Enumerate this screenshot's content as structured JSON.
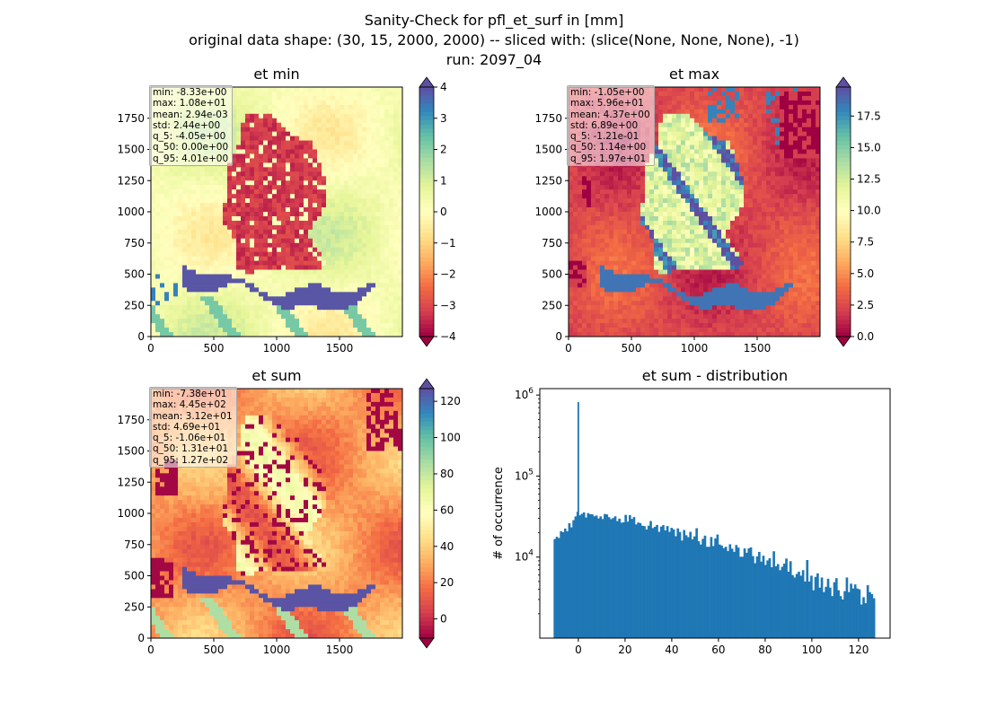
{
  "figure": {
    "title_lines": [
      "Sanity-Check for pfl_et_surf in [mm]",
      "original data shape: (30, 15, 2000, 2000) -- sliced with: (slice(None, None, None), -1)",
      "run: 2097_04"
    ]
  },
  "colors": {
    "spectral": [
      "#9e0142",
      "#d53e4f",
      "#f46d43",
      "#fdae61",
      "#fee08b",
      "#ffffbf",
      "#e6f598",
      "#abdda4",
      "#66c2a5",
      "#3288bd",
      "#5e4fa2"
    ],
    "hist_bar": "#1f77b4"
  },
  "chart_data": [
    {
      "type": "heatmap",
      "title": "et min",
      "xticks": [
        0,
        500,
        1000,
        1500
      ],
      "yticks": [
        0,
        250,
        500,
        750,
        1000,
        1250,
        1500,
        1750
      ],
      "xlim": [
        0,
        2000
      ],
      "ylim": [
        0,
        2000
      ],
      "colorbar": {
        "range": [
          -4,
          4
        ],
        "ticks": [
          4,
          3,
          2,
          1,
          0,
          -1,
          -2,
          -3,
          -4
        ],
        "tick_labels": [
          "4",
          "3",
          "2",
          "1",
          "0",
          "−1",
          "−2",
          "−3",
          "−4"
        ],
        "extend": "both",
        "colormap": "Spectral"
      },
      "stats": [
        "min: -8.33e+00",
        "max: 1.08e+01",
        "mean: 2.94e-03",
        "std: 2.44e+00",
        "q_5: -4.05e+00",
        "q_50: 0.00e+00",
        "q_95: 4.01e+00"
      ]
    },
    {
      "type": "heatmap",
      "title": "et max",
      "xticks": [
        0,
        500,
        1000,
        1500
      ],
      "yticks": [
        0,
        250,
        500,
        750,
        1000,
        1250,
        1500,
        1750
      ],
      "xlim": [
        0,
        2000
      ],
      "ylim": [
        0,
        2000
      ],
      "colorbar": {
        "range": [
          0,
          19.8
        ],
        "ticks": [
          17.5,
          15.0,
          12.5,
          10.0,
          7.5,
          5.0,
          2.5,
          0.0
        ],
        "tick_labels": [
          "17.5",
          "15.0",
          "12.5",
          "10.0",
          "7.5",
          "5.0",
          "2.5",
          "0.0"
        ],
        "extend": "both",
        "colormap": "Spectral"
      },
      "stats": [
        "min: -1.05e+00",
        "max: 5.96e+01",
        "mean: 4.37e+00",
        "std: 6.89e+00",
        "q_5: -1.21e-01",
        "q_50: 1.14e+00",
        "q_95: 1.97e+01"
      ]
    },
    {
      "type": "heatmap",
      "title": "et sum",
      "xticks": [
        0,
        500,
        1000,
        1500
      ],
      "yticks": [
        0,
        250,
        500,
        750,
        1000,
        1250,
        1500,
        1750
      ],
      "xlim": [
        0,
        2000
      ],
      "ylim": [
        0,
        2000
      ],
      "colorbar": {
        "range": [
          -10.6,
          127
        ],
        "ticks": [
          120,
          100,
          80,
          60,
          40,
          20,
          0
        ],
        "tick_labels": [
          "120",
          "100",
          "80",
          "60",
          "40",
          "20",
          "0"
        ],
        "extend": "both",
        "colormap": "Spectral"
      },
      "stats": [
        "min: -7.38e+01",
        "max: 4.45e+02",
        "mean: 3.12e+01",
        "std: 4.69e+01",
        "q_5: -1.06e+01",
        "q_50: 1.31e+01",
        "q_95: 1.27e+02"
      ]
    },
    {
      "type": "bar",
      "title": "et sum - distribution",
      "ylabel": "# of occurrence",
      "yscale": "log",
      "xlim": [
        -16.5,
        133.5
      ],
      "ylim": [
        1000,
        1200000
      ],
      "xticks": [
        0,
        20,
        40,
        60,
        80,
        100,
        120
      ],
      "yticks": [
        10000,
        100000,
        1000000
      ],
      "ytick_labels": [
        {
          "base": "10",
          "exp": "4"
        },
        {
          "base": "10",
          "exp": "5"
        },
        {
          "base": "10",
          "exp": "6"
        }
      ],
      "bin_range": [
        -10.6,
        127
      ],
      "peak": {
        "x": 0,
        "y": 820000
      },
      "bin_counts": [
        16700,
        17800,
        17200,
        20800,
        20300,
        22500,
        20800,
        26200,
        23300,
        28500,
        31800,
        36300,
        32800,
        34200,
        35600,
        30800,
        34900,
        33800,
        33700,
        31900,
        32600,
        30000,
        31800,
        29500,
        34000,
        33600,
        31100,
        29400,
        30400,
        31900,
        27800,
        29800,
        26600,
        26900,
        33200,
        27400,
        33000,
        29600,
        31200,
        25300,
        26700,
        26300,
        24400,
        24100,
        21900,
        24400,
        27900,
        22800,
        23600,
        24900,
        20500,
        23800,
        24800,
        21400,
        24200,
        20500,
        23000,
        22000,
        18100,
        22600,
        20400,
        16000,
        21600,
        18600,
        17600,
        20500,
        16600,
        18000,
        22700,
        15700,
        14300,
        16800,
        18400,
        13400,
        13400,
        17700,
        13700,
        17000,
        19000,
        14300,
        13900,
        12900,
        13400,
        11900,
        14400,
        12700,
        11600,
        14100,
        13100,
        10100,
        10100,
        12800,
        11300,
        12800,
        13200,
        10300,
        8400,
        10200,
        11600,
        8800,
        10400,
        8000,
        9100,
        9700,
        7500,
        11800,
        7700,
        8200,
        6900,
        7600,
        8300,
        9600,
        6600,
        8900,
        6000,
        5600,
        6200,
        6600,
        5900,
        6900,
        5000,
        9200,
        5000,
        5900,
        3900,
        5700,
        6300,
        4200,
        5600,
        3700,
        4300,
        5400,
        4200,
        3300,
        4900,
        5500,
        3900,
        3300,
        3000,
        3800,
        5600,
        3700,
        4700,
        4100,
        4600,
        4100,
        4000,
        2600,
        3200,
        2700,
        4500,
        3700,
        3500,
        3100
      ]
    }
  ]
}
